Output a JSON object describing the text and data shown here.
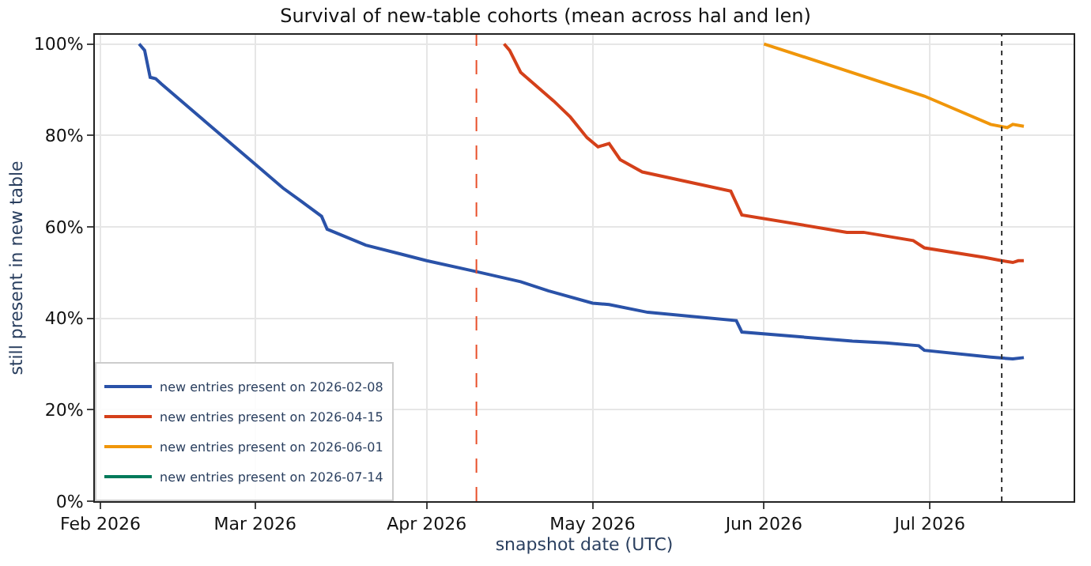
{
  "chart_data": {
    "type": "line",
    "title": "Survival of new-table cohorts (mean across hal and len)",
    "xlabel": "snapshot date (UTC)",
    "ylabel": "still present in new table",
    "xlim": [
      "2026-01-31",
      "2026-07-27"
    ],
    "xticks": [
      {
        "value": "2026-02-01",
        "label": "Feb 2026"
      },
      {
        "value": "2026-03-01",
        "label": "Mar 2026"
      },
      {
        "value": "2026-04-01",
        "label": "Apr 2026"
      },
      {
        "value": "2026-05-01",
        "label": "May 2026"
      },
      {
        "value": "2026-06-01",
        "label": "Jun 2026"
      },
      {
        "value": "2026-07-01",
        "label": "Jul 2026"
      }
    ],
    "ylim": [
      0,
      102
    ],
    "yticks": [
      {
        "value": 0,
        "label": "0%"
      },
      {
        "value": 20,
        "label": "20%"
      },
      {
        "value": 40,
        "label": "40%"
      },
      {
        "value": 60,
        "label": "60%"
      },
      {
        "value": 80,
        "label": "80%"
      },
      {
        "value": 100,
        "label": "100%"
      }
    ],
    "grid": true,
    "legend": "bottom left",
    "marker": "none",
    "line_style": "solid",
    "series": [
      {
        "name": "new entries present on 2026-02-08",
        "color": "#2a52a8",
        "x": [
          "2026-02-08",
          "2026-02-09",
          "2026-02-10",
          "2026-02-11",
          "2026-02-12",
          "2026-02-20",
          "2026-03-01",
          "2026-03-06",
          "2026-03-10",
          "2026-03-13",
          "2026-03-14",
          "2026-03-21",
          "2026-04-01",
          "2026-04-10",
          "2026-04-18",
          "2026-04-23",
          "2026-05-01",
          "2026-05-04",
          "2026-05-11",
          "2026-05-27",
          "2026-05-28",
          "2026-06-17",
          "2026-06-23",
          "2026-06-29",
          "2026-06-30",
          "2026-07-12",
          "2026-07-16",
          "2026-07-18"
        ],
        "values": [
          100,
          98.6,
          92.7,
          92.4,
          91.3,
          83,
          73.7,
          68.5,
          65,
          62.3,
          59.5,
          56,
          52.6,
          50.2,
          48,
          46,
          43.3,
          43,
          41.3,
          39.5,
          37,
          35,
          34.6,
          34,
          33,
          31.5,
          31.1,
          31.4
        ]
      },
      {
        "name": "new entries present on 2026-04-15",
        "color": "#d4401a",
        "x": [
          "2026-04-15",
          "2026-04-16",
          "2026-04-18",
          "2026-04-24",
          "2026-04-27",
          "2026-04-30",
          "2026-05-02",
          "2026-05-04",
          "2026-05-06",
          "2026-05-10",
          "2026-05-26",
          "2026-05-28",
          "2026-06-16",
          "2026-06-19",
          "2026-06-28",
          "2026-06-30",
          "2026-07-11",
          "2026-07-14",
          "2026-07-16",
          "2026-07-17",
          "2026-07-18"
        ],
        "values": [
          100,
          98.6,
          93.8,
          87.5,
          84,
          79.5,
          77.5,
          78.2,
          74.7,
          72,
          67.8,
          62.6,
          58.8,
          58.8,
          57,
          55.4,
          53.3,
          52.6,
          52.2,
          52.6,
          52.6
        ]
      },
      {
        "name": "new entries present on 2026-06-01",
        "color": "#f0960a",
        "x": [
          "2026-06-01",
          "2026-06-30",
          "2026-07-12",
          "2026-07-15",
          "2026-07-16",
          "2026-07-18"
        ],
        "values": [
          100,
          88.6,
          82.4,
          81.7,
          82.4,
          82
        ]
      },
      {
        "name": "new entries present on 2026-07-14",
        "color": "#007a5a"
      }
    ],
    "ref_lines": [
      {
        "axis": "x",
        "value": "2026-04-10",
        "color": "#e8502a",
        "line_style": "dashed"
      },
      {
        "axis": "x",
        "value": "2026-07-14",
        "color": "#333333",
        "line_style": "dotted"
      }
    ]
  }
}
